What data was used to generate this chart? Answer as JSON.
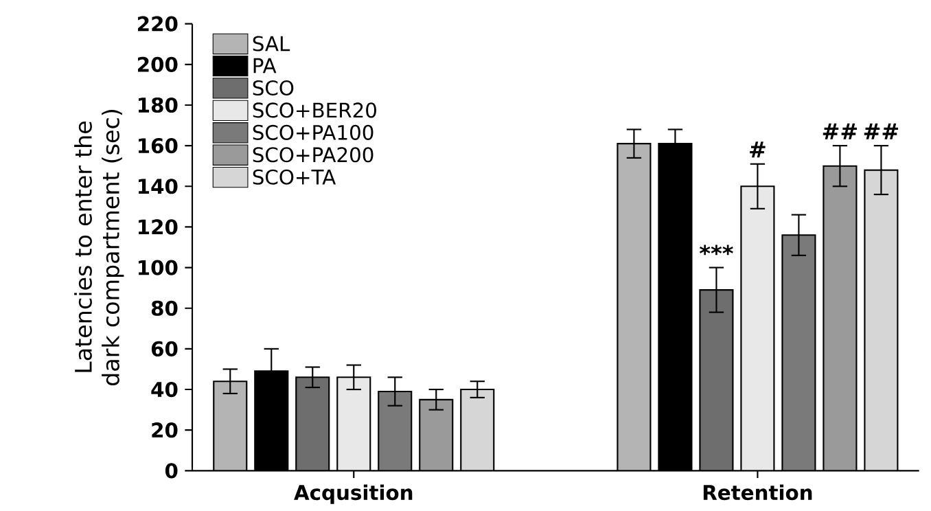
{
  "chart_data": {
    "type": "bar",
    "ylabel": "Latencies to enter the dark compartment (sec)",
    "categories": [
      "Acqusition",
      "Retention"
    ],
    "series": [
      {
        "name": "SAL",
        "color": "#b4b4b4",
        "values": [
          44,
          161
        ],
        "errors": [
          6,
          7
        ]
      },
      {
        "name": "PA",
        "color": "#000000",
        "values": [
          49,
          161
        ],
        "errors": [
          11,
          7
        ]
      },
      {
        "name": "SCO",
        "color": "#6e6e6e",
        "values": [
          46,
          89
        ],
        "errors": [
          5,
          11
        ],
        "value_labels": [
          null,
          "***"
        ]
      },
      {
        "name": "SCO+BER20",
        "color": "#e8e8e8",
        "values": [
          46,
          140
        ],
        "errors": [
          6,
          11
        ],
        "value_labels": [
          null,
          "#"
        ]
      },
      {
        "name": "SCO+PA100",
        "color": "#7a7a7a",
        "values": [
          39,
          116
        ],
        "errors": [
          7,
          10
        ]
      },
      {
        "name": "SCO+PA200",
        "color": "#9a9a9a",
        "values": [
          35,
          150
        ],
        "errors": [
          5,
          10
        ],
        "value_labels": [
          null,
          "##"
        ]
      },
      {
        "name": "SCO+TA",
        "color": "#d6d6d6",
        "values": [
          40,
          148
        ],
        "errors": [
          4,
          12
        ],
        "value_labels": [
          null,
          "##"
        ]
      }
    ],
    "ylim": [
      0,
      220
    ],
    "yticks": [
      0,
      20,
      40,
      60,
      80,
      100,
      120,
      140,
      160,
      180,
      200,
      220
    ],
    "legend": "top left",
    "grid": false
  }
}
